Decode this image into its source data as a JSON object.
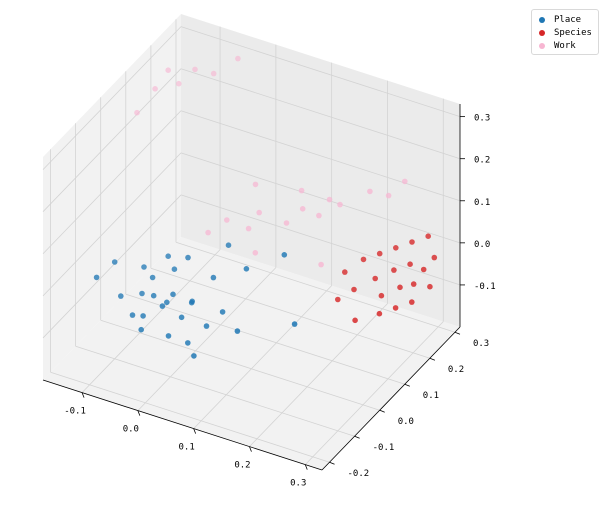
{
  "chart_data": {
    "type": "scatter",
    "projection": "3d",
    "grid": true,
    "legend_position": "top-right",
    "axes": {
      "x": {
        "lim": [
          -0.17,
          0.33
        ],
        "ticks": [
          -0.1,
          0.0,
          0.1,
          0.2,
          0.3
        ],
        "tick_labels": [
          "-0.1",
          "0.0",
          "0.1",
          "0.2",
          "0.3"
        ]
      },
      "y": {
        "lim": [
          -0.23,
          0.32
        ],
        "ticks": [
          -0.2,
          -0.1,
          0.0,
          0.1,
          0.2,
          0.3
        ],
        "tick_labels": [
          "-0.2",
          "-0.1",
          "0.0",
          "0.1",
          "0.2",
          "0.3"
        ]
      },
      "z": {
        "lim": [
          -0.2,
          0.33
        ],
        "ticks": [
          -0.1,
          0.0,
          0.1,
          0.2,
          0.3
        ],
        "tick_labels": [
          "-0.1",
          "0.0",
          "0.1",
          "0.2",
          "0.3"
        ]
      }
    },
    "series": [
      {
        "name": "Place",
        "color": "#1f77b4",
        "points": [
          [
            -0.11,
            -0.15,
            0.02
          ],
          [
            -0.1,
            -0.1,
            0.03
          ],
          [
            -0.08,
            -0.12,
            -0.03
          ],
          [
            -0.07,
            -0.05,
            0.0
          ],
          [
            -0.06,
            -0.08,
            -0.04
          ],
          [
            -0.05,
            -0.14,
            -0.05
          ],
          [
            -0.05,
            -0.06,
            -0.01
          ],
          [
            -0.04,
            -0.12,
            -0.06
          ],
          [
            -0.04,
            -0.02,
            0.02
          ],
          [
            -0.03,
            -0.1,
            -0.02
          ],
          [
            -0.03,
            -0.15,
            -0.07
          ],
          [
            -0.02,
            -0.07,
            -0.05
          ],
          [
            -0.02,
            -0.04,
            0.01
          ],
          [
            -0.01,
            -0.11,
            -0.03
          ],
          [
            0.0,
            -0.09,
            -0.01
          ],
          [
            0.0,
            -0.03,
            0.04
          ],
          [
            0.01,
            -0.13,
            -0.08
          ],
          [
            0.02,
            -0.06,
            -0.04
          ],
          [
            0.02,
            -0.1,
            -0.05
          ],
          [
            0.03,
            -0.08,
            -0.02
          ],
          [
            0.04,
            -0.12,
            -0.09
          ],
          [
            0.05,
            -0.04,
            0.02
          ],
          [
            0.06,
            -0.09,
            -0.06
          ],
          [
            0.06,
            -0.14,
            -0.1
          ],
          [
            0.08,
            -0.07,
            -0.03
          ],
          [
            0.1,
            -0.02,
            0.05
          ],
          [
            0.12,
            -0.1,
            -0.04
          ],
          [
            0.15,
            0.02,
            0.08
          ],
          [
            0.2,
            -0.05,
            -0.02
          ],
          [
            0.05,
            0.02,
            0.06
          ]
        ]
      },
      {
        "name": "Species",
        "color": "#d62728",
        "points": [
          [
            0.2,
            0.15,
            -0.02
          ],
          [
            0.21,
            0.1,
            -0.05
          ],
          [
            0.22,
            0.18,
            0.0
          ],
          [
            0.23,
            0.12,
            -0.03
          ],
          [
            0.24,
            0.2,
            0.01
          ],
          [
            0.25,
            0.08,
            -0.07
          ],
          [
            0.25,
            0.16,
            -0.02
          ],
          [
            0.26,
            0.22,
            0.02
          ],
          [
            0.27,
            0.14,
            -0.04
          ],
          [
            0.27,
            0.19,
            -0.01
          ],
          [
            0.28,
            0.11,
            -0.06
          ],
          [
            0.28,
            0.24,
            0.03
          ],
          [
            0.29,
            0.17,
            -0.03
          ],
          [
            0.29,
            0.21,
            0.0
          ],
          [
            0.3,
            0.13,
            -0.05
          ],
          [
            0.3,
            0.26,
            0.04
          ],
          [
            0.31,
            0.18,
            -0.02
          ],
          [
            0.31,
            0.22,
            -0.01
          ],
          [
            0.32,
            0.15,
            -0.04
          ],
          [
            0.32,
            0.24,
            0.01
          ],
          [
            0.33,
            0.2,
            -0.03
          ]
        ]
      },
      {
        "name": "Work",
        "color": "#f7b6d2",
        "points": [
          [
            -0.15,
            0.1,
            0.24
          ],
          [
            -0.14,
            0.15,
            0.27
          ],
          [
            -0.13,
            0.18,
            0.3
          ],
          [
            -0.12,
            0.2,
            0.26
          ],
          [
            -0.1,
            0.22,
            0.29
          ],
          [
            -0.08,
            0.25,
            0.27
          ],
          [
            -0.05,
            0.28,
            0.3
          ],
          [
            0.0,
            0.05,
            0.05
          ],
          [
            0.02,
            0.08,
            0.07
          ],
          [
            0.05,
            0.1,
            0.05
          ],
          [
            0.06,
            0.12,
            0.08
          ],
          [
            0.08,
            0.06,
            0.03
          ],
          [
            0.1,
            0.14,
            0.06
          ],
          [
            0.12,
            0.16,
            0.09
          ],
          [
            0.14,
            0.18,
            0.07
          ],
          [
            0.15,
            0.2,
            0.1
          ],
          [
            0.16,
            0.22,
            0.08
          ],
          [
            0.18,
            0.1,
            0.02
          ],
          [
            0.2,
            0.25,
            0.11
          ],
          [
            0.22,
            0.28,
            0.09
          ],
          [
            0.24,
            0.3,
            0.12
          ],
          [
            0.1,
            0.2,
            0.1
          ],
          [
            0.04,
            0.15,
            0.12
          ]
        ]
      }
    ]
  }
}
